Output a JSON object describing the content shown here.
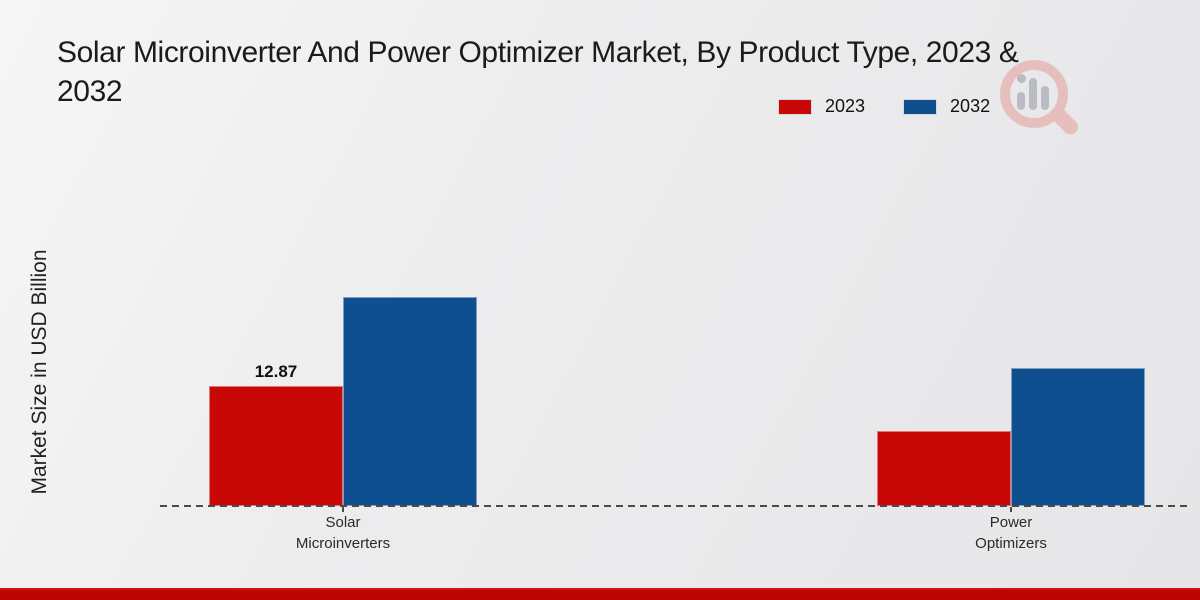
{
  "page": {
    "title_line1": "Solar Microinverter And Power Optimizer Market, By Product Type, 2023 &",
    "title_line2": "2032"
  },
  "chart_data": {
    "type": "bar",
    "title": "Solar Microinverter And Power Optimizer Market, By Product Type, 2023 & 2032",
    "xlabel": "",
    "ylabel": "Market Size in USD Billion",
    "units": "USD Billion",
    "legend_position": "top-right",
    "grid": false,
    "baseline_style": "dashed",
    "categories": [
      "Solar Microinverters",
      "Power Optimizers"
    ],
    "category_lines": [
      [
        "Solar",
        "Microinverters"
      ],
      [
        "Power",
        "Optimizers"
      ]
    ],
    "series": [
      {
        "name": "2023",
        "color": "#c80806",
        "values": [
          12.87,
          8.0
        ],
        "data_labels": [
          "12.87",
          ""
        ]
      },
      {
        "name": "2032",
        "color": "#0f4f8f",
        "values": [
          22.4,
          14.8
        ],
        "data_labels": [
          "",
          ""
        ]
      }
    ]
  },
  "colors": {
    "series_2023": "#c80806",
    "series_2032": "#0f4f8f",
    "footer_strip": "#bd0404",
    "background": "#ebebec",
    "axis": "#4a4a4a"
  }
}
